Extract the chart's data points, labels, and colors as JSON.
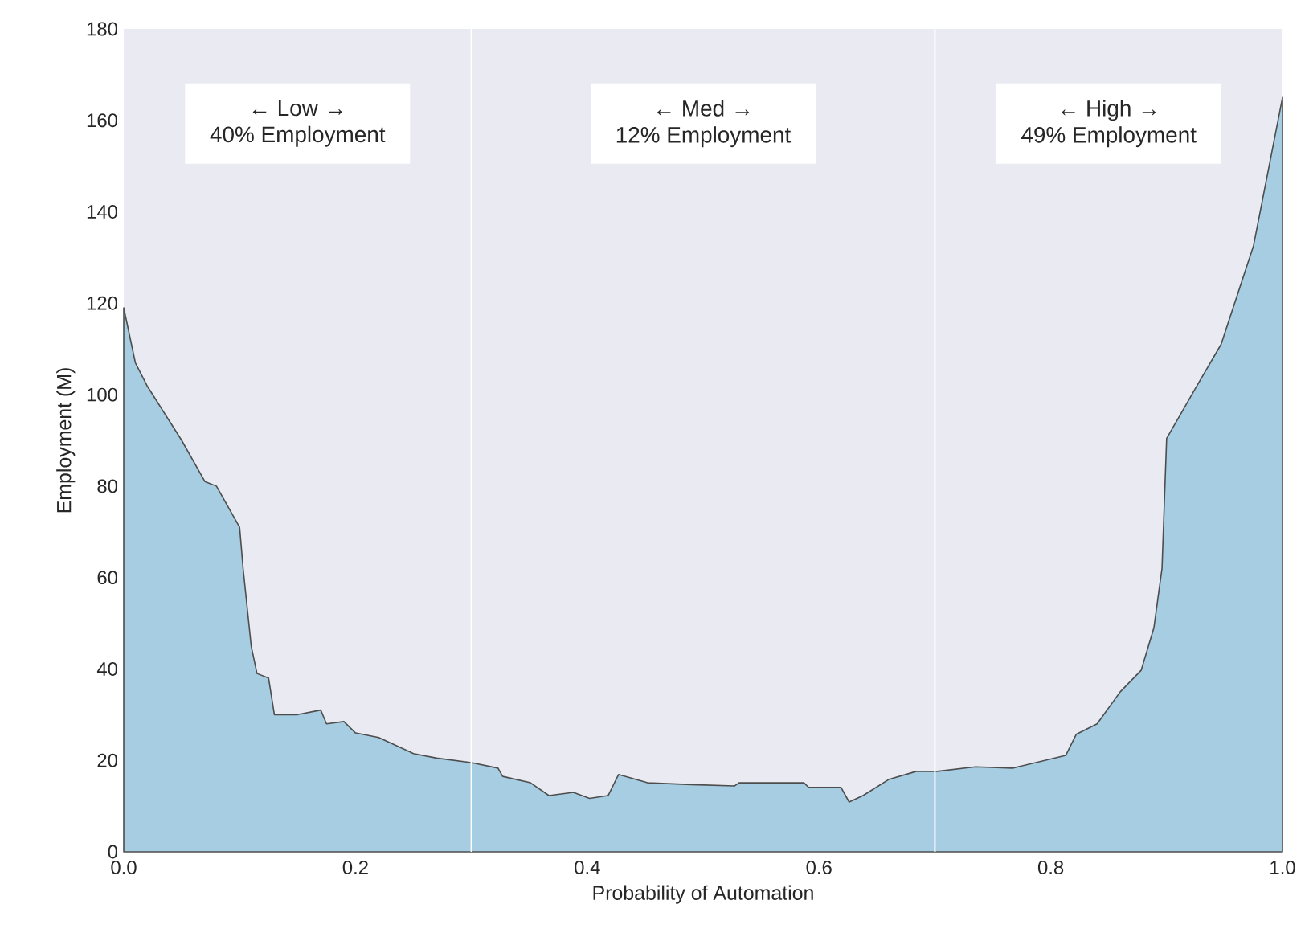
{
  "chart_data": {
    "type": "area",
    "xlabel": "Probability of Automation",
    "ylabel": "Employment (M)",
    "xlim": [
      0,
      1
    ],
    "ylim": [
      0,
      180
    ],
    "xticks": [
      {
        "value": 0,
        "label": "0.0"
      },
      0.2,
      0.4,
      0.6,
      0.8,
      {
        "value": 1,
        "label": "1.0"
      }
    ],
    "yticks": [
      0,
      20,
      40,
      60,
      80,
      100,
      120,
      140,
      160,
      180
    ],
    "grid": false,
    "ref_lines": [
      {
        "axis": "x",
        "value": 0.3,
        "color": "#ffffff"
      },
      {
        "axis": "x",
        "value": 0.7,
        "color": "#ffffff"
      }
    ],
    "annotations": [
      "← Low →",
      "40% Employment",
      "← Med →",
      "12% Employment",
      "← High →",
      "49% Employment"
    ],
    "series": [
      {
        "color": "#a6cde1",
        "x": [
          0,
          0.01,
          0.02,
          0.03,
          0.05,
          0.07,
          0.08,
          0.1,
          0.103,
          0.11,
          0.115,
          0.125,
          0.13,
          0.15,
          0.17,
          0.175,
          0.19,
          0.2,
          0.22,
          0.25,
          0.27,
          0.3,
          0.323,
          0.327,
          0.351,
          0.367,
          0.388,
          0.402,
          0.418,
          0.427,
          0.452,
          0.49,
          0.527,
          0.531,
          0.587,
          0.591,
          0.619,
          0.626,
          0.638,
          0.66,
          0.684,
          0.702,
          0.735,
          0.767,
          0.813,
          0.822,
          0.84,
          0.86,
          0.878,
          0.889,
          0.896,
          0.9,
          0.924,
          0.947,
          0.975,
          1.0
        ],
        "values": [
          119,
          107,
          102,
          98,
          90,
          81,
          80,
          71,
          62,
          45,
          39,
          38,
          30,
          30,
          31,
          28,
          28.5,
          26,
          25,
          21.5,
          20.5,
          19.5,
          18.3,
          16.5,
          15.1,
          12.3,
          13,
          11.7,
          12.3,
          16.9,
          15.1,
          14.7,
          14.4,
          15.1,
          15.1,
          14.1,
          14.1,
          10.9,
          12.3,
          15.8,
          17.6,
          17.6,
          18.6,
          18.3,
          21.1,
          25.7,
          28,
          35,
          39.7,
          49,
          62,
          90.4,
          101,
          111,
          132.6,
          165
        ]
      }
    ]
  }
}
